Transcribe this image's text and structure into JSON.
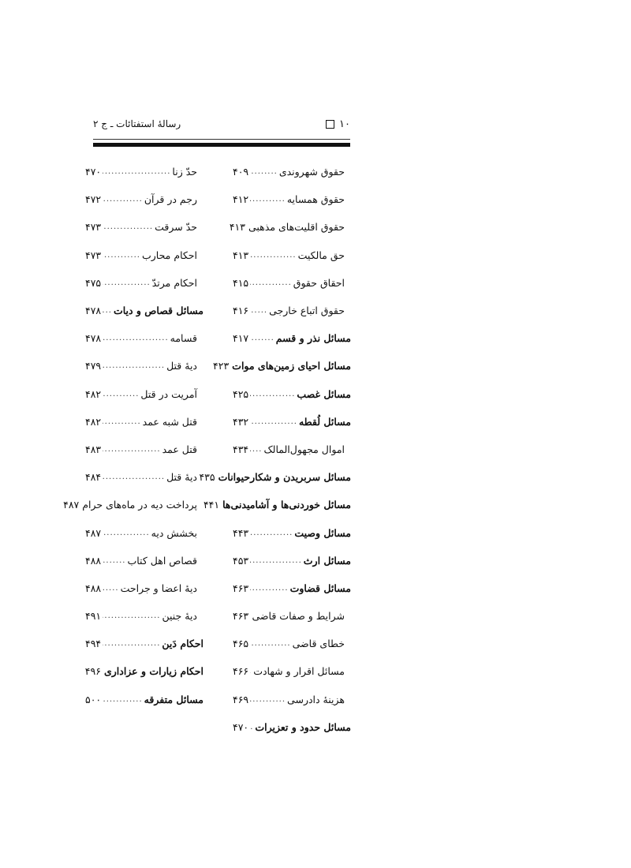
{
  "header": {
    "page_number": "۱۰",
    "running_title": "رسالهٔ استفتائات ـ ج ۲"
  },
  "right_column": [
    {
      "title": "حقوق شهروندی",
      "page": "۴۰۹",
      "bold": false
    },
    {
      "title": "حقوق همسایه",
      "page": "۴۱۲",
      "bold": false
    },
    {
      "title": "حقوق اقلیت‌های مذهبی",
      "page": "۴۱۳",
      "bold": false
    },
    {
      "title": "حق مالکیت",
      "page": "۴۱۳",
      "bold": false
    },
    {
      "title": "احقاق حقوق",
      "page": "۴۱۵",
      "bold": false
    },
    {
      "title": "حقوق اتباع خارجی",
      "page": "۴۱۶",
      "bold": false
    },
    {
      "title": "مسائل نذر و قسم",
      "page": "۴۱۷",
      "bold": true
    },
    {
      "title": "مسائل احیای زمین‌های موات",
      "page": "۴۲۳",
      "bold": true
    },
    {
      "title": "مسائل غصب",
      "page": "۴۲۵",
      "bold": true
    },
    {
      "title": "مسائل لُقطه",
      "page": "۴۳۲",
      "bold": true
    },
    {
      "title": "اموال مجهول‌المالک",
      "page": "۴۳۴",
      "bold": false
    },
    {
      "title": "مسائل سربریدن و شکارحیوانات",
      "page": "۴۳۵",
      "bold": true
    },
    {
      "title": "مسائل خوردنی‌ها و آشامیدنی‌ها",
      "page": "۴۴۱",
      "bold": true
    },
    {
      "title": "مسائل وصیت",
      "page": "۴۴۳",
      "bold": true
    },
    {
      "title": "مسائل ارث",
      "page": "۴۵۳",
      "bold": true
    },
    {
      "title": "مسائل قضاوت",
      "page": "۴۶۳",
      "bold": true
    },
    {
      "title": "شرایط و صفات قاضی",
      "page": "۴۶۳",
      "bold": false
    },
    {
      "title": "خطای قاضی",
      "page": "۴۶۵",
      "bold": false
    },
    {
      "title": "مسائل اقرار و شهادت",
      "page": "۴۶۶",
      "bold": false
    },
    {
      "title": "هزینهٔ دادرسی",
      "page": "۴۶۹",
      "bold": false
    },
    {
      "title": "مسائل حدود و تعزیرات",
      "page": "۴۷۰",
      "bold": true
    }
  ],
  "left_column": [
    {
      "title": "حدّ زنا",
      "page": "۴۷۰",
      "bold": false
    },
    {
      "title": "رجم در قرآن",
      "page": "۴۷۲",
      "bold": false
    },
    {
      "title": "حدّ سرقت",
      "page": "۴۷۳",
      "bold": false
    },
    {
      "title": "احکام محارب",
      "page": "۴۷۳",
      "bold": false
    },
    {
      "title": "احکام مرتدّ",
      "page": "۴۷۵",
      "bold": false
    },
    {
      "title": "مسائل قصاص و دیات",
      "page": "۴۷۸",
      "bold": true
    },
    {
      "title": "قسامه",
      "page": "۴۷۸",
      "bold": false
    },
    {
      "title": "دیهٔ قتل",
      "page": "۴۷۹",
      "bold": false
    },
    {
      "title": "آمریت در قتل",
      "page": "۴۸۲",
      "bold": false
    },
    {
      "title": "قتل شبه عمد",
      "page": "۴۸۲",
      "bold": false
    },
    {
      "title": "قتل عمد",
      "page": "۴۸۳",
      "bold": false
    },
    {
      "title": "دیهٔ قتل",
      "page": "۴۸۴",
      "bold": false
    },
    {
      "title": "پرداخت دیه در ماه‌های حرام",
      "page": "۴۸۷",
      "bold": false
    },
    {
      "title": "بخشش دیه",
      "page": "۴۸۷",
      "bold": false
    },
    {
      "title": "قصاص اهل کتاب",
      "page": "۴۸۸",
      "bold": false
    },
    {
      "title": "دیهٔ اعضا و جراحت",
      "page": "۴۸۸",
      "bold": false
    },
    {
      "title": "دیهٔ جنین",
      "page": "۴۹۱",
      "bold": false
    },
    {
      "title": "احکام دَین",
      "page": "۴۹۴",
      "bold": true
    },
    {
      "title": "احکام زیارات و عزاداری",
      "page": "۴۹۶",
      "bold": true
    },
    {
      "title": "مسائل متفرقه",
      "page": "۵۰۰",
      "bold": true
    }
  ]
}
